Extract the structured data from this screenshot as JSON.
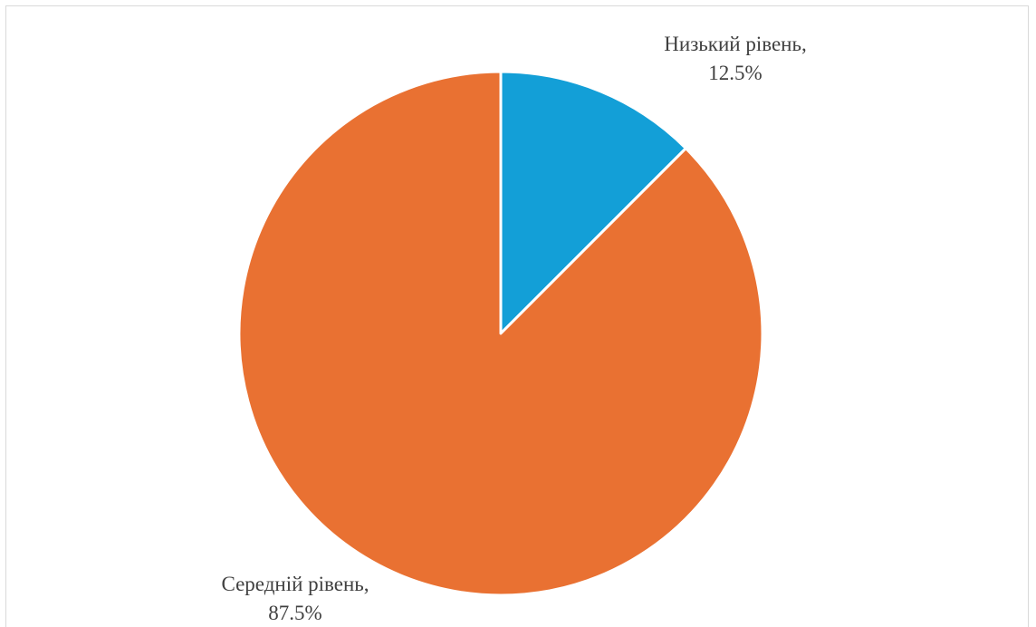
{
  "chart_data": {
    "type": "pie",
    "title": "",
    "categories": [
      "Низький рівень",
      "Середній рівень"
    ],
    "values": [
      12.5,
      87.5
    ],
    "unit": "%",
    "colors": [
      "#139fd7",
      "#e97132"
    ],
    "start_angle_deg": 0,
    "direction": "clockwise",
    "legend": "none",
    "labels": [
      {
        "category": "Низький рівень,",
        "value": "12.5%"
      },
      {
        "category": "Середній рівень,",
        "value": "87.5%"
      }
    ]
  }
}
